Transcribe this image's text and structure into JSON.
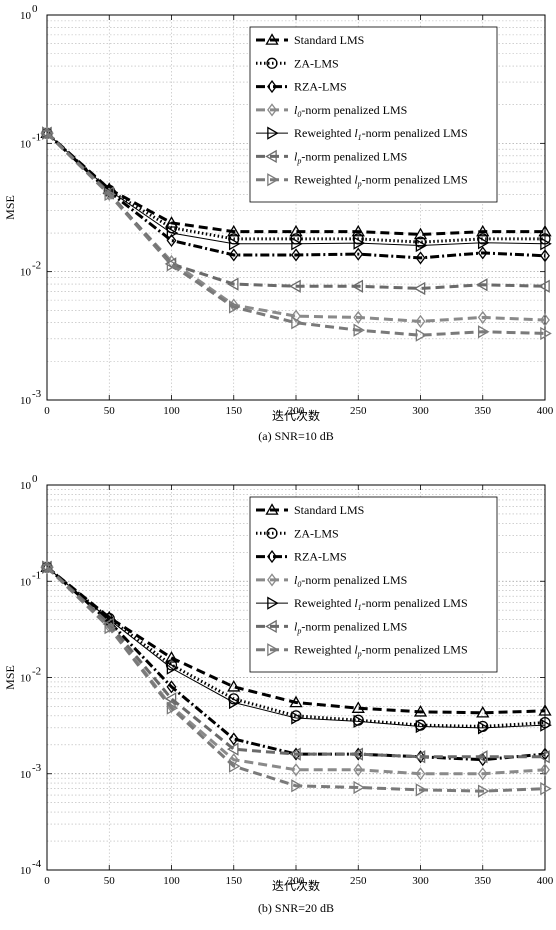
{
  "chart_data": [
    {
      "type": "line",
      "caption": "(a) SNR=10 dB",
      "xlabel": "迭代次数",
      "ylabel": "MSE",
      "yscale": "log",
      "xlim": [
        0,
        400
      ],
      "ylim": [
        0.001,
        1
      ],
      "x_ticks": [
        0,
        50,
        100,
        150,
        200,
        250,
        300,
        350,
        400
      ],
      "y_ticks": [
        {
          "base": "10",
          "exp": "-3",
          "v": 0.001
        },
        {
          "base": "10",
          "exp": "-2",
          "v": 0.01
        },
        {
          "base": "10",
          "exp": "-1",
          "v": 0.1
        },
        {
          "base": "10",
          "exp": "0",
          "v": 1
        }
      ],
      "grid": true,
      "legend_position": "top-right",
      "x": [
        0,
        50,
        100,
        150,
        200,
        250,
        300,
        350,
        400
      ],
      "series": [
        {
          "key": "std",
          "name": "Standard LMS",
          "values": [
            0.12,
            0.044,
            0.024,
            0.0205,
            0.0205,
            0.0205,
            0.0195,
            0.0205,
            0.0205
          ],
          "color": "#000000",
          "dash": "9,5",
          "width": 3,
          "marker": "triangle-up"
        },
        {
          "key": "za",
          "name": "ZA-LMS",
          "values": [
            0.12,
            0.043,
            0.022,
            0.018,
            0.018,
            0.018,
            0.017,
            0.018,
            0.018
          ],
          "color": "#000000",
          "dash": "1.5,2.5",
          "width": 3,
          "marker": "circle"
        },
        {
          "key": "rza",
          "name": "RZA-LMS",
          "values": [
            0.12,
            0.042,
            0.0175,
            0.0135,
            0.0135,
            0.0137,
            0.0128,
            0.014,
            0.0133
          ],
          "color": "#000000",
          "dash": "9,3,2,3",
          "width": 3,
          "marker": "diamond"
        },
        {
          "key": "l0",
          "name": "-norm penalized LMS",
          "values": [
            0.12,
            0.04,
            0.012,
            0.0055,
            0.0045,
            0.0044,
            0.0041,
            0.0044,
            0.0042
          ],
          "color": "#8a8a8a",
          "dash": "9,5",
          "width": 3,
          "marker": "diamond"
        },
        {
          "key": "rwl1",
          "name": "-norm penalized LMS",
          "values": [
            0.12,
            0.043,
            0.02,
            0.0165,
            0.0165,
            0.0167,
            0.016,
            0.0168,
            0.0165
          ],
          "color": "#000000",
          "dash": "",
          "width": 1,
          "marker": "triangle-right"
        },
        {
          "key": "lp",
          "name": "-norm penalized LMS",
          "values": [
            0.12,
            0.041,
            0.0115,
            0.008,
            0.0077,
            0.0077,
            0.0074,
            0.0079,
            0.0077
          ],
          "color": "#6a6a6a",
          "dash": "9,5",
          "width": 3,
          "marker": "triangle-left"
        },
        {
          "key": "rwlp",
          "name": "-norm penalized LMS",
          "values": [
            0.12,
            0.04,
            0.0113,
            0.0053,
            0.004,
            0.0035,
            0.0032,
            0.0034,
            0.0033
          ],
          "color": "#7a7a7a",
          "dash": "9,5",
          "width": 3,
          "marker": "triangle-right"
        }
      ]
    },
    {
      "type": "line",
      "caption": "(b) SNR=20 dB",
      "xlabel": "迭代次数",
      "ylabel": "MSE",
      "yscale": "log",
      "xlim": [
        0,
        400
      ],
      "ylim": [
        0.0001,
        1
      ],
      "x_ticks": [
        0,
        50,
        100,
        150,
        200,
        250,
        300,
        350,
        400
      ],
      "y_ticks": [
        {
          "base": "10",
          "exp": "-4",
          "v": 0.0001
        },
        {
          "base": "10",
          "exp": "-3",
          "v": 0.001
        },
        {
          "base": "10",
          "exp": "-2",
          "v": 0.01
        },
        {
          "base": "10",
          "exp": "-1",
          "v": 0.1
        },
        {
          "base": "10",
          "exp": "0",
          "v": 1
        }
      ],
      "grid": true,
      "legend_position": "top-right",
      "x": [
        0,
        50,
        100,
        150,
        200,
        250,
        300,
        350,
        400
      ],
      "series": [
        {
          "key": "std",
          "name": "Standard LMS",
          "values": [
            0.14,
            0.042,
            0.016,
            0.008,
            0.0055,
            0.0048,
            0.0044,
            0.0043,
            0.0045
          ],
          "color": "#000000",
          "dash": "9,5",
          "width": 3,
          "marker": "triangle-up"
        },
        {
          "key": "za",
          "name": "ZA-LMS",
          "values": [
            0.14,
            0.041,
            0.0135,
            0.006,
            0.004,
            0.0036,
            0.0032,
            0.0031,
            0.0034
          ],
          "color": "#000000",
          "dash": "1.5,2.5",
          "width": 3,
          "marker": "circle"
        },
        {
          "key": "rza",
          "name": "RZA-LMS",
          "values": [
            0.14,
            0.038,
            0.008,
            0.0023,
            0.0016,
            0.0016,
            0.0015,
            0.0014,
            0.0016
          ],
          "color": "#000000",
          "dash": "9,3,2,3",
          "width": 3,
          "marker": "diamond"
        },
        {
          "key": "l0",
          "name": "-norm penalized LMS",
          "values": [
            0.14,
            0.034,
            0.005,
            0.0014,
            0.0011,
            0.0011,
            0.001,
            0.001,
            0.0011
          ],
          "color": "#8a8a8a",
          "dash": "9,5",
          "width": 3,
          "marker": "diamond"
        },
        {
          "key": "rwl1",
          "name": "-norm penalized LMS",
          "values": [
            0.14,
            0.04,
            0.0125,
            0.0055,
            0.0038,
            0.0035,
            0.0031,
            0.003,
            0.0032
          ],
          "color": "#000000",
          "dash": "",
          "width": 1,
          "marker": "triangle-right"
        },
        {
          "key": "lp",
          "name": "-norm penalized LMS",
          "values": [
            0.14,
            0.036,
            0.006,
            0.0018,
            0.0016,
            0.0016,
            0.0015,
            0.0015,
            0.0015
          ],
          "color": "#6a6a6a",
          "dash": "9,5",
          "width": 3,
          "marker": "triangle-left"
        },
        {
          "key": "rwlp",
          "name": "-norm penalized LMS",
          "values": [
            0.14,
            0.033,
            0.0048,
            0.0012,
            0.00075,
            0.00072,
            0.00068,
            0.00066,
            0.0007
          ],
          "color": "#7a7a7a",
          "dash": "9,5",
          "width": 3,
          "marker": "triangle-right"
        }
      ]
    }
  ],
  "legend_prefixes": {
    "l0": {
      "text": "l",
      "sub": "0"
    },
    "rwl1": {
      "text": "Reweighted l",
      "sub": "1"
    },
    "lp": {
      "text": "l",
      "sub": "p"
    },
    "rwlp": {
      "text": "Reweighted l",
      "sub": "p"
    }
  }
}
